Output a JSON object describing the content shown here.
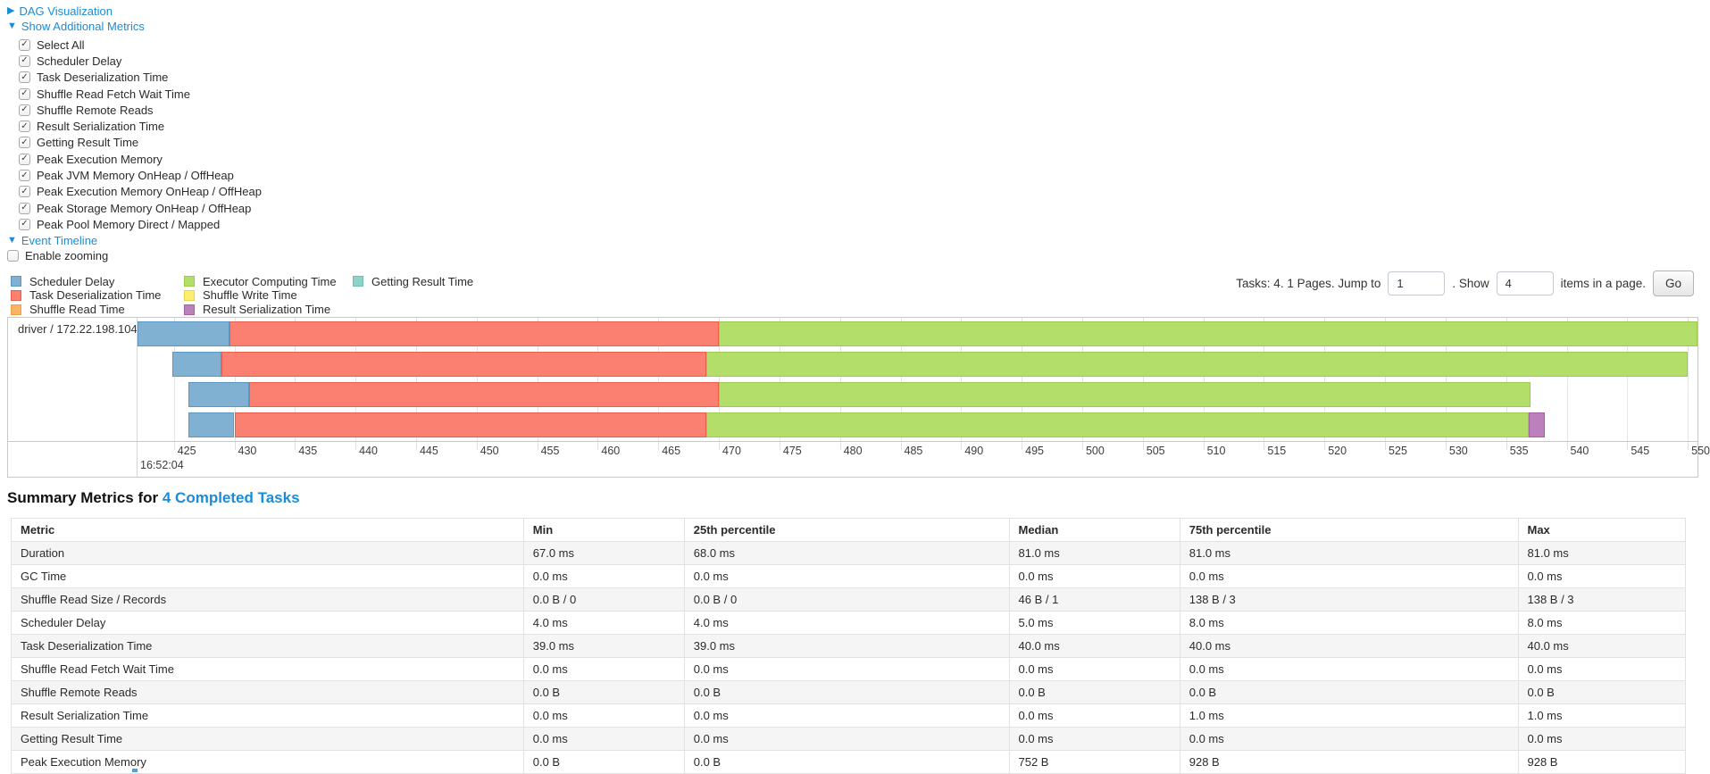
{
  "icons": {
    "collapsed_arrow": "▶",
    "expanded_arrow": "▼",
    "checkbox_check": "✓"
  },
  "controls": {
    "dag": {
      "label": "DAG Visualization"
    },
    "metrics": {
      "label": "Show Additional Metrics"
    },
    "checkboxes": [
      {
        "label": "Select All",
        "checked": true
      },
      {
        "label": "Scheduler Delay",
        "checked": true
      },
      {
        "label": "Task Deserialization Time",
        "checked": true
      },
      {
        "label": "Shuffle Read Fetch Wait Time",
        "checked": true
      },
      {
        "label": "Shuffle Remote Reads",
        "checked": true
      },
      {
        "label": "Result Serialization Time",
        "checked": true
      },
      {
        "label": "Getting Result Time",
        "checked": true
      },
      {
        "label": "Peak Execution Memory",
        "checked": true
      },
      {
        "label": "Peak JVM Memory OnHeap / OffHeap",
        "checked": true
      },
      {
        "label": "Peak Execution Memory OnHeap / OffHeap",
        "checked": true
      },
      {
        "label": "Peak Storage Memory OnHeap / OffHeap",
        "checked": true
      },
      {
        "label": "Peak Pool Memory Direct / Mapped",
        "checked": true
      }
    ],
    "event_timeline": {
      "label": "Event Timeline"
    },
    "enable_zooming": {
      "label": "Enable zooming",
      "checked": false
    }
  },
  "legend": {
    "items": [
      {
        "key": "scheduler_delay",
        "label": "Scheduler Delay",
        "color": "#80B1D3",
        "border": "#5E97C2",
        "column": 0
      },
      {
        "key": "task_deserialization",
        "label": "Task Deserialization Time",
        "color": "#FB8072",
        "border": "#E85F50",
        "column": 0
      },
      {
        "key": "shuffle_read",
        "label": "Shuffle Read Time",
        "color": "#FDB462",
        "border": "#ECA04A",
        "column": 0
      },
      {
        "key": "executor_computing",
        "label": "Executor Computing Time",
        "color": "#B3DE69",
        "border": "#9CCB4E",
        "column": 1
      },
      {
        "key": "shuffle_write",
        "label": "Shuffle Write Time",
        "color": "#FFED6F",
        "border": "#E9D54F",
        "column": 1
      },
      {
        "key": "result_serialization",
        "label": "Result Serialization Time",
        "color": "#BC80BD",
        "border": "#A563A7",
        "column": 1
      },
      {
        "key": "getting_result",
        "label": "Getting Result Time",
        "color": "#8DD3C7",
        "border": "#6FBFB1",
        "column": 2
      }
    ]
  },
  "pagination": {
    "text_prefix": "Tasks: 4. 1 Pages. Jump to",
    "jump_value": "1",
    "text_mid": ". Show",
    "show_value": "4",
    "text_suffix": "items in a page.",
    "go_label": "Go"
  },
  "chart_data": {
    "type": "timeline",
    "title": "Event Timeline",
    "row_label": "driver / 172.22.198.104",
    "axis": {
      "min": 422.0,
      "max": 550.8,
      "ticks": [
        425,
        430,
        435,
        440,
        445,
        450,
        455,
        460,
        465,
        470,
        475,
        480,
        485,
        490,
        495,
        500,
        505,
        510,
        515,
        520,
        525,
        530,
        535,
        540,
        545,
        550
      ],
      "major_label": "16:52:04"
    },
    "tasks": [
      {
        "segments": [
          {
            "type": "scheduler_delay",
            "start": 422.0,
            "end": 429.6
          },
          {
            "type": "task_deserialization",
            "start": 429.6,
            "end": 470.0
          },
          {
            "type": "executor_computing",
            "start": 470.0,
            "end": 550.8
          }
        ]
      },
      {
        "segments": [
          {
            "type": "scheduler_delay",
            "start": 424.9,
            "end": 428.9
          },
          {
            "type": "task_deserialization",
            "start": 428.9,
            "end": 469.0
          },
          {
            "type": "executor_computing",
            "start": 469.0,
            "end": 550.0
          }
        ]
      },
      {
        "segments": [
          {
            "type": "scheduler_delay",
            "start": 426.2,
            "end": 431.2
          },
          {
            "type": "task_deserialization",
            "start": 431.2,
            "end": 470.0
          },
          {
            "type": "executor_computing",
            "start": 470.0,
            "end": 537.0
          }
        ]
      },
      {
        "segments": [
          {
            "type": "scheduler_delay",
            "start": 426.2,
            "end": 430.0
          },
          {
            "type": "task_deserialization",
            "start": 430.0,
            "end": 469.0
          },
          {
            "type": "executor_computing",
            "start": 469.0,
            "end": 536.9
          },
          {
            "type": "result_serialization",
            "start": 536.9,
            "end": 538.2
          }
        ]
      }
    ]
  },
  "summary": {
    "title_prefix": "Summary Metrics for",
    "title_link": "4 Completed Tasks",
    "table": {
      "headers": [
        "Metric",
        "Min",
        "25th percentile",
        "Median",
        "75th percentile",
        "Max"
      ],
      "rows": [
        [
          "Duration",
          "67.0 ms",
          "68.0 ms",
          "81.0 ms",
          "81.0 ms",
          "81.0 ms"
        ],
        [
          "GC Time",
          "0.0 ms",
          "0.0 ms",
          "0.0 ms",
          "0.0 ms",
          "0.0 ms"
        ],
        [
          "Shuffle Read Size / Records",
          "0.0 B / 0",
          "0.0 B / 0",
          "46 B / 1",
          "138 B / 3",
          "138 B / 3"
        ],
        [
          "Scheduler Delay",
          "4.0 ms",
          "4.0 ms",
          "5.0 ms",
          "8.0 ms",
          "8.0 ms"
        ],
        [
          "Task Deserialization Time",
          "39.0 ms",
          "39.0 ms",
          "40.0 ms",
          "40.0 ms",
          "40.0 ms"
        ],
        [
          "Shuffle Read Fetch Wait Time",
          "0.0 ms",
          "0.0 ms",
          "0.0 ms",
          "0.0 ms",
          "0.0 ms"
        ],
        [
          "Shuffle Remote Reads",
          "0.0 B",
          "0.0 B",
          "0.0 B",
          "0.0 B",
          "0.0 B"
        ],
        [
          "Result Serialization Time",
          "0.0 ms",
          "0.0 ms",
          "0.0 ms",
          "1.0 ms",
          "1.0 ms"
        ],
        [
          "Getting Result Time",
          "0.0 ms",
          "0.0 ms",
          "0.0 ms",
          "0.0 ms",
          "0.0 ms"
        ],
        [
          "Peak Execution Memory",
          "0.0 B",
          "0.0 B",
          "752 B",
          "928 B",
          "928 B"
        ]
      ]
    }
  }
}
